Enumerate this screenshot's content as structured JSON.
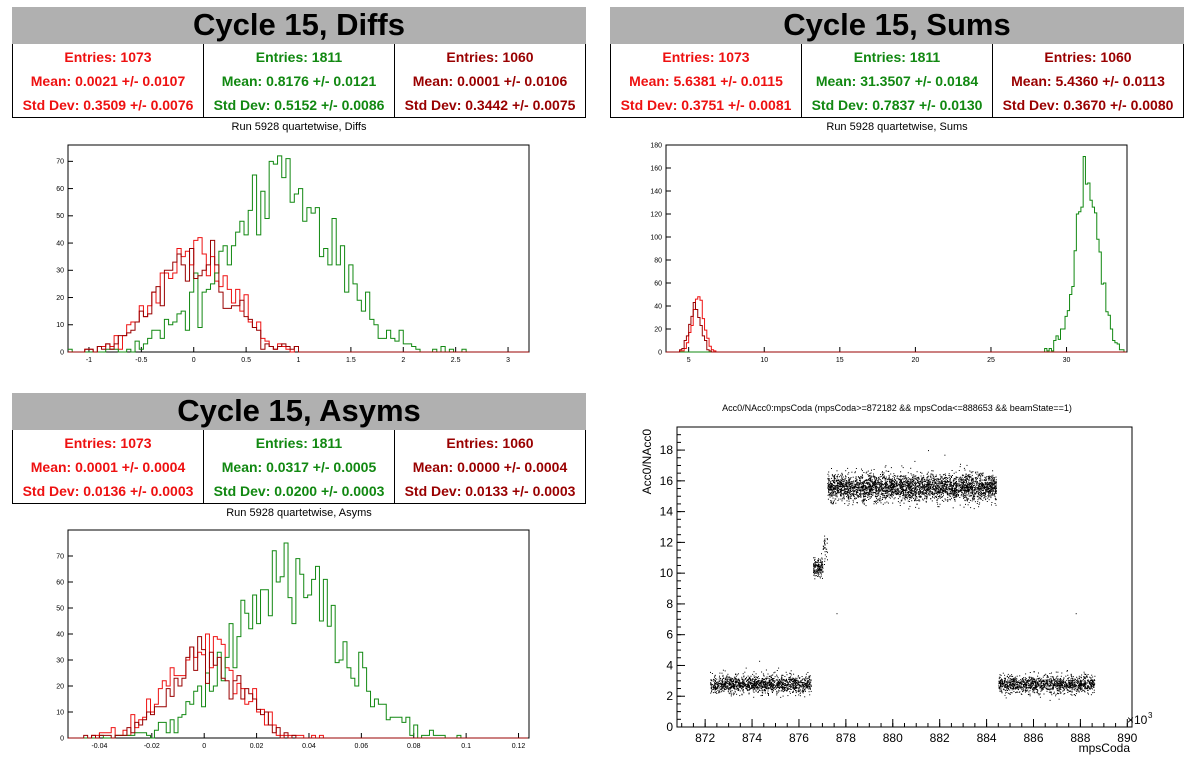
{
  "colors": {
    "red": "#ee1111",
    "green": "#118811",
    "darkred": "#990000",
    "title_bg": "#b0b0b0"
  },
  "panels": [
    {
      "title": "Cycle 15, Diffs",
      "subtitle": "Run 5928 quartetwise, Diffs",
      "stats": [
        {
          "entries": "Entries: 1073",
          "mean": "Mean: 0.0021 +/- 0.0107",
          "std": "Std Dev: 0.3509 +/- 0.0076",
          "color": "#ee1111"
        },
        {
          "entries": "Entries: 1811",
          "mean": "Mean: 0.8176 +/- 0.0121",
          "std": "Std Dev: 0.5152 +/- 0.0086",
          "color": "#118811"
        },
        {
          "entries": "Entries: 1060",
          "mean": "Mean: 0.0001 +/- 0.0106",
          "std": "Std Dev: 0.3442 +/- 0.0075",
          "color": "#990000"
        }
      ]
    },
    {
      "title": "Cycle 15, Sums",
      "subtitle": "Run 5928 quartetwise, Sums",
      "stats": [
        {
          "entries": "Entries: 1073",
          "mean": "Mean: 5.6381 +/- 0.0115",
          "std": "Std Dev: 0.3751 +/- 0.0081",
          "color": "#ee1111"
        },
        {
          "entries": "Entries: 1811",
          "mean": "Mean: 31.3507 +/- 0.0184",
          "std": "Std Dev: 0.7837 +/- 0.0130",
          "color": "#118811"
        },
        {
          "entries": "Entries: 1060",
          "mean": "Mean: 5.4360 +/- 0.0113",
          "std": "Std Dev: 0.3670 +/- 0.0080",
          "color": "#990000"
        }
      ]
    },
    {
      "title": "Cycle 15, Asyms",
      "subtitle": "Run 5928 quartetwise, Asyms",
      "stats": [
        {
          "entries": "Entries: 1073",
          "mean": "Mean: 0.0001 +/- 0.0004",
          "std": "Std Dev: 0.0136 +/- 0.0003",
          "color": "#ee1111"
        },
        {
          "entries": "Entries: 1811",
          "mean": "Mean: 0.0317 +/- 0.0005",
          "std": "Std Dev: 0.0200 +/- 0.0003",
          "color": "#118811"
        },
        {
          "entries": "Entries: 1060",
          "mean": "Mean: 0.0000 +/- 0.0004",
          "std": "Std Dev: 0.0133 +/- 0.0003",
          "color": "#990000"
        }
      ]
    }
  ],
  "chart_data": [
    {
      "type": "histogram",
      "xlim": [
        -1.2,
        3.2
      ],
      "ylim": [
        0,
        76
      ],
      "xticks": [
        -1,
        -0.5,
        0,
        0.5,
        1,
        1.5,
        2,
        2.5,
        3
      ],
      "xtick_labels": [
        "-1",
        "-0.5",
        "0",
        "0.5",
        "1",
        "1.5",
        "2",
        "2.5",
        "3"
      ],
      "yticks": [
        0,
        10,
        20,
        30,
        40,
        50,
        60,
        70
      ],
      "ytick_labels": [
        "0",
        "10",
        "20",
        "30",
        "40",
        "50",
        "60",
        "70"
      ],
      "bin_width": 0.04,
      "series": [
        {
          "entries": 1073,
          "mean": 0.0021,
          "std": 0.3509,
          "peak": 42,
          "color": "#ee1111"
        },
        {
          "entries": 1811,
          "mean": 0.8176,
          "std": 0.5152,
          "peak": 72,
          "color": "#118811"
        },
        {
          "entries": 1060,
          "mean": 0.0001,
          "std": 0.3442,
          "peak": 41,
          "color": "#990000"
        }
      ]
    },
    {
      "type": "histogram",
      "xlim": [
        3.5,
        34
      ],
      "ylim": [
        0,
        180
      ],
      "xticks": [
        5,
        10,
        15,
        20,
        25,
        30
      ],
      "xtick_labels": [
        "5",
        "10",
        "15",
        "20",
        "25",
        "30"
      ],
      "yticks": [
        0,
        20,
        40,
        60,
        80,
        100,
        120,
        140,
        160,
        180
      ],
      "ytick_labels": [
        "0",
        "20",
        "40",
        "60",
        "80",
        "100",
        "120",
        "140",
        "160",
        "180"
      ],
      "bin_width": 0.15,
      "series": [
        {
          "entries": 1073,
          "mean": 5.6381,
          "std": 0.3751,
          "peak": 48,
          "color": "#ee1111"
        },
        {
          "entries": 1811,
          "mean": 31.3507,
          "std": 0.7837,
          "peak": 170,
          "color": "#118811"
        },
        {
          "entries": 1060,
          "mean": 5.436,
          "std": 0.367,
          "peak": 43,
          "color": "#990000"
        }
      ]
    },
    {
      "type": "histogram",
      "xlim": [
        -0.052,
        0.124
      ],
      "ylim": [
        0,
        80
      ],
      "xticks": [
        -0.04,
        -0.02,
        0,
        0.02,
        0.04,
        0.06,
        0.08,
        0.1,
        0.12
      ],
      "xtick_labels": [
        "-0.04",
        "-0.02",
        "0",
        "0.02",
        "0.04",
        "0.06",
        "0.08",
        "0.1",
        "0.12"
      ],
      "yticks": [
        0,
        10,
        20,
        30,
        40,
        50,
        60,
        70
      ],
      "ytick_labels": [
        "0",
        "10",
        "20",
        "30",
        "40",
        "50",
        "60",
        "70"
      ],
      "bin_width": 0.0015,
      "series": [
        {
          "entries": 1073,
          "mean": 0.0001,
          "std": 0.0136,
          "peak": 40,
          "color": "#ee1111"
        },
        {
          "entries": 1811,
          "mean": 0.0317,
          "std": 0.02,
          "peak": 75,
          "color": "#118811"
        },
        {
          "entries": 1060,
          "mean": 0.0,
          "std": 0.0133,
          "peak": 39,
          "color": "#990000"
        }
      ]
    },
    {
      "type": "scatter",
      "title": "Acc0/NAcc0:mpsCoda (mpsCoda>=872182 && mpsCoda<=888653 && beamState==1)",
      "xlabel": "mpsCoda",
      "ylabel": "Acc0/NAcc0",
      "x_exponent_label": "×10",
      "x_exponent_power": "3",
      "xlim": [
        870.8,
        890.2
      ],
      "ylim": [
        0,
        19.5
      ],
      "xticks": [
        872,
        874,
        876,
        878,
        880,
        882,
        884,
        886,
        888,
        890
      ],
      "xtick_labels": [
        "872",
        "874",
        "876",
        "878",
        "880",
        "882",
        "884",
        "886",
        "888",
        "890"
      ],
      "yticks": [
        0,
        2,
        4,
        6,
        8,
        10,
        12,
        14,
        16,
        18
      ],
      "ytick_labels": [
        "0",
        "2",
        "4",
        "6",
        "8",
        "10",
        "12",
        "14",
        "16",
        "18"
      ],
      "clusters": [
        {
          "x": [
            872.2,
            876.5
          ],
          "y_center": 2.8,
          "y_spread": 0.35,
          "count": 1400
        },
        {
          "x": [
            876.6,
            877.0
          ],
          "y_center": 10.4,
          "y_spread": 0.4,
          "count": 160
        },
        {
          "x": [
            877.0,
            877.2
          ],
          "y_center": 11.8,
          "y_spread": 0.6,
          "count": 30
        },
        {
          "x": [
            877.2,
            884.4
          ],
          "y_center": 15.6,
          "y_spread": 0.55,
          "count": 3400
        },
        {
          "x": [
            884.5,
            888.6
          ],
          "y_center": 2.8,
          "y_spread": 0.35,
          "count": 1300
        }
      ]
    }
  ]
}
